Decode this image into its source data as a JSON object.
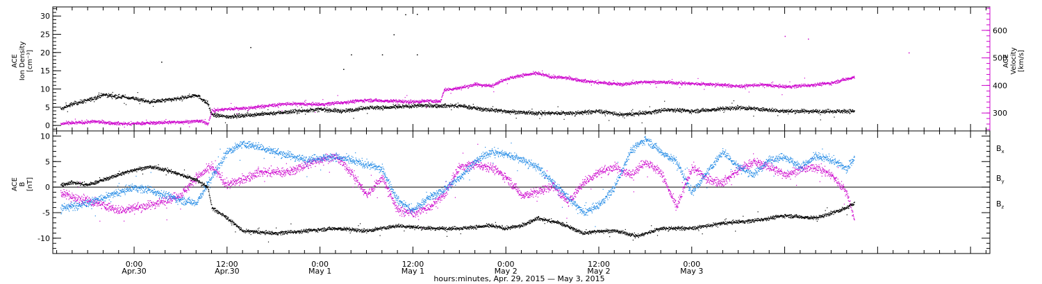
{
  "chart_data": [
    {
      "type": "scatter",
      "panel": "top",
      "ylabel_lines": [
        "ACE",
        "Ion Density",
        "[cm⁻³]"
      ],
      "ylim": [
        -1.5,
        32.5
      ],
      "yticks": [
        0,
        5,
        10,
        15,
        20,
        25,
        30
      ],
      "right_axis": {
        "label_lines": [
          "ACE",
          "Velocity",
          "[km/s]"
        ],
        "ylim": [
          235,
          685
        ],
        "yticks": [
          300,
          400,
          500,
          600
        ],
        "color": "#cc00cc"
      },
      "series": [
        {
          "axis": "left",
          "color": "#000000",
          "x": [
            -9.5,
            -8,
            -6,
            -4,
            -2,
            0,
            2,
            4,
            6,
            8,
            9.5,
            10,
            12,
            15,
            18,
            21,
            24,
            27,
            30,
            33,
            36,
            40,
            42,
            45,
            48,
            51,
            54,
            57,
            60,
            63,
            66,
            69,
            72,
            75,
            78,
            81,
            84,
            87,
            90,
            93
          ],
          "y": [
            4.5,
            6,
            7,
            8.5,
            8,
            7.5,
            6.5,
            7,
            7.5,
            8.5,
            6,
            3,
            2.5,
            3,
            3.5,
            4,
            4.5,
            4,
            5,
            5,
            5.5,
            5.5,
            5.5,
            4.5,
            4,
            3.5,
            3.5,
            3.5,
            4,
            3,
            3.5,
            4.5,
            4,
            4.5,
            5,
            4.5,
            4,
            4,
            4,
            4
          ]
        },
        {
          "axis": "right",
          "color": "#cc00cc",
          "x": [
            -9.5,
            -7,
            -5,
            -3,
            -1,
            1,
            3,
            5,
            7,
            8.5,
            9.5,
            10,
            12,
            15,
            18,
            20,
            24,
            27,
            30,
            33,
            36,
            38,
            39.5,
            40,
            42,
            44,
            46,
            48,
            50,
            52,
            54,
            56,
            58,
            60,
            63,
            66,
            69,
            72,
            75,
            78,
            81,
            84,
            87,
            90,
            92,
            93
          ],
          "y": [
            262,
            267,
            270,
            265,
            262,
            264,
            266,
            268,
            270,
            272,
            262,
            310,
            316,
            320,
            330,
            335,
            332,
            340,
            348,
            345,
            342,
            345,
            343,
            385,
            392,
            405,
            400,
            425,
            438,
            445,
            432,
            428,
            418,
            412,
            405,
            415,
            412,
            408,
            405,
            398,
            404,
            396,
            402,
            410,
            425,
            432
          ]
        }
      ],
      "outliers": [
        {
          "x": 35,
          "y": 30.5,
          "axis": "left"
        },
        {
          "x": 36.5,
          "y": 30.6,
          "axis": "left"
        },
        {
          "x": 33.5,
          "y": 25,
          "axis": "left"
        },
        {
          "x": 15,
          "y": 21.5,
          "axis": "left"
        },
        {
          "x": 3.5,
          "y": 17.5,
          "axis": "left"
        },
        {
          "x": 27,
          "y": 15.5,
          "axis": "left"
        },
        {
          "x": 36.5,
          "y": 19.5,
          "axis": "left"
        },
        {
          "x": 28,
          "y": 19.5,
          "axis": "left"
        },
        {
          "x": 32,
          "y": 19.5,
          "axis": "left"
        },
        {
          "x": 84,
          "y": 580,
          "axis": "right"
        },
        {
          "x": 87,
          "y": 570,
          "axis": "right"
        },
        {
          "x": 100,
          "y": 520,
          "axis": "right"
        }
      ]
    },
    {
      "type": "scatter",
      "panel": "bottom",
      "ylabel_lines": [
        "ACE",
        "B",
        "[nT]"
      ],
      "ylim": [
        -13,
        11
      ],
      "yticks": [
        -10,
        -5,
        0,
        5,
        10
      ],
      "zero_line": true,
      "legend": [
        {
          "name": "B",
          "sub": "x",
          "color": "#000000"
        },
        {
          "name": "B",
          "sub": "y",
          "color": "#1e88e5"
        },
        {
          "name": "B",
          "sub": "z",
          "color": "#cc00cc"
        }
      ],
      "series": [
        {
          "name": "Bx",
          "color": "#000000",
          "x": [
            -9.5,
            -8,
            -6,
            -4,
            -2,
            0,
            2,
            4,
            6,
            8,
            9.5,
            10,
            12,
            14,
            18,
            22,
            26,
            30,
            34,
            38,
            42,
            46,
            48,
            50,
            52,
            55,
            58,
            60,
            62,
            65,
            68,
            72,
            76,
            80,
            84,
            88,
            92,
            93
          ],
          "y": [
            0.5,
            1,
            0.5,
            1.5,
            2.5,
            3.5,
            4,
            3.5,
            2.5,
            1.5,
            0,
            -4,
            -6,
            -8.5,
            -9,
            -8.5,
            -8,
            -8.5,
            -7.5,
            -8,
            -8,
            -7.5,
            -8,
            -7.5,
            -6,
            -7,
            -9,
            -8.5,
            -8.5,
            -9.5,
            -8,
            -8,
            -7,
            -6.5,
            -5.5,
            -6,
            -4,
            -3
          ]
        },
        {
          "name": "By",
          "color": "#1e88e5",
          "x": [
            -9.5,
            -7,
            -4,
            -2,
            0,
            2,
            4,
            6,
            8,
            10,
            12,
            14,
            16,
            18,
            22,
            26,
            30,
            32,
            34,
            36,
            38,
            40,
            42,
            44,
            46,
            48,
            50,
            52,
            54,
            56,
            58,
            60,
            62,
            64,
            66,
            68,
            70,
            72,
            74,
            76,
            78,
            80,
            82,
            84,
            86,
            88,
            90,
            92,
            93
          ],
          "y": [
            -4,
            -3.5,
            -2,
            -1,
            0,
            -0.5,
            -1.5,
            -2.5,
            -3,
            2,
            7,
            8.5,
            8,
            7,
            5.5,
            6,
            4.5,
            3.5,
            -2.5,
            -4.5,
            -2,
            -0.5,
            2,
            5,
            7,
            6.5,
            5.5,
            4,
            1,
            -2,
            -5,
            -3.5,
            0,
            7,
            9.5,
            7,
            5,
            -1,
            3,
            7,
            4,
            2.5,
            5.5,
            6,
            4,
            6,
            5.5,
            3.5,
            6
          ]
        },
        {
          "name": "Bz",
          "color": "#cc00cc",
          "x": [
            -9.5,
            -8,
            -6,
            -4,
            -2,
            0,
            2,
            4,
            6,
            8,
            10,
            12,
            14,
            16,
            20,
            24,
            26,
            28,
            30,
            32,
            34,
            36,
            38,
            40,
            42,
            44,
            46,
            48,
            50,
            52,
            54,
            56,
            58,
            60,
            62,
            64,
            66,
            68,
            70,
            72,
            74,
            76,
            78,
            80,
            82,
            84,
            86,
            88,
            90,
            92,
            93
          ],
          "y": [
            -1,
            -2,
            -2.5,
            -3.5,
            -4.5,
            -4,
            -3.5,
            -2.5,
            -1.5,
            2,
            4,
            0.5,
            1.5,
            3,
            3,
            5.5,
            6,
            3,
            -1.5,
            2,
            -4.5,
            -5,
            -4,
            -1.5,
            4,
            4.5,
            4,
            2,
            -1.5,
            -1,
            0.5,
            -3,
            1,
            3,
            4,
            2.5,
            5,
            3,
            -4,
            4,
            1.5,
            1,
            3.5,
            5,
            4,
            2.5,
            3.5,
            4,
            2.5,
            -1,
            -6.5
          ]
        }
      ]
    }
  ],
  "x_axis": {
    "range_hours": [
      -10.5,
      110.5
    ],
    "ticks": [
      {
        "h": 0,
        "time": "0:00",
        "date": "Apr.30"
      },
      {
        "h": 12,
        "time": "12:00",
        "date": "Apr.30"
      },
      {
        "h": 24,
        "time": "0:00",
        "date": "May 1"
      },
      {
        "h": 36,
        "time": "12:00",
        "date": "May 1"
      },
      {
        "h": 48,
        "time": "0:00",
        "date": "May 2"
      },
      {
        "h": 60,
        "time": "12:00",
        "date": "May 2"
      },
      {
        "h": 72,
        "time": "0:00",
        "date": "May 3"
      }
    ],
    "label": "hours:minutes, Apr. 29, 2015 — May  3, 2015"
  }
}
